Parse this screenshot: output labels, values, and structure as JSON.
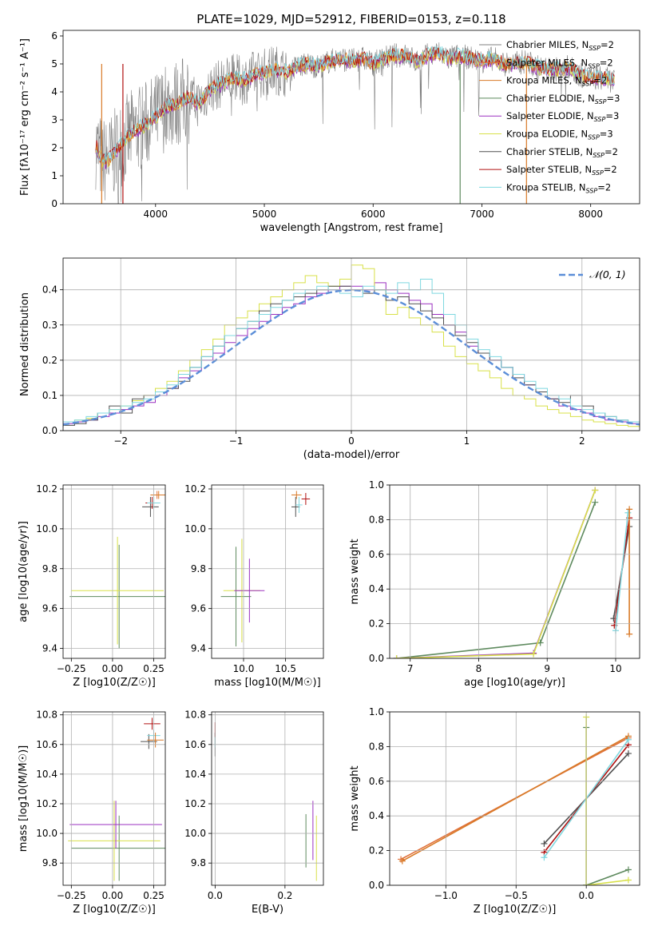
{
  "figure_title": "PLATE=1029, MJD=52912, FIBERID=0153, z=0.118",
  "colors": {
    "Chabrier MILES": "#808080",
    "Salpeter MILES": "#e0703a",
    "Kroupa MILES": "#d97a28",
    "Chabrier ELODIE": "#5e8a5e",
    "Salpeter ELODIE": "#9b30c0",
    "Kroupa ELODIE": "#d8e048",
    "Chabrier STELIB": "#505050",
    "Salpeter STELIB": "#b01010",
    "Kroupa STELIB": "#7fd8e0",
    "normal": "#5b8ed8"
  },
  "chart_data": [
    {
      "id": "spectrum",
      "type": "line",
      "title": "PLATE=1029, MJD=52912, FIBERID=0153, z=0.118",
      "xlabel": "wavelength [Angstrom, rest frame]",
      "ylabel": "Flux [fλ10⁻¹⁷ erg cm⁻² s⁻¹ A⁻¹]",
      "xlim": [
        3150,
        8450
      ],
      "ylim": [
        0,
        6.2
      ],
      "xticks": [
        4000,
        5000,
        6000,
        7000,
        8000
      ],
      "yticks": [
        0,
        1,
        2,
        3,
        4,
        5,
        6
      ],
      "grid": false,
      "legend_position": "top-right",
      "legend": [
        "Chabrier MILES, N_SSP=2",
        "Salpeter MILES, N_SSP=2",
        "Kroupa MILES, N_SSP=2",
        "Chabrier ELODIE, N_SSP=3",
        "Salpeter ELODIE, N_SSP=3",
        "Kroupa ELODIE, N_SSP=3",
        "Chabrier STELIB, N_SSP=2",
        "Salpeter STELIB, N_SSP=2",
        "Kroupa STELIB, N_SSP=2"
      ],
      "model_x": [
        3450,
        3500,
        3550,
        3600,
        3700,
        3800,
        3900,
        4000,
        4100,
        4200,
        4300,
        4400,
        4500,
        4600,
        4700,
        4800,
        4900,
        5000,
        5100,
        5200,
        5300,
        5400,
        5500,
        5600,
        5700,
        5800,
        5900,
        6000,
        6100,
        6200,
        6300,
        6400,
        6500,
        6600,
        6700,
        6800,
        6900,
        7000,
        7100,
        7200,
        7300,
        7400,
        7500,
        7600,
        7700,
        7800,
        7900,
        8000,
        8100,
        8200
      ],
      "model_y": [
        2.1,
        1.6,
        1.5,
        1.7,
        2.2,
        2.6,
        2.8,
        3.1,
        3.5,
        3.6,
        3.8,
        3.6,
        4.1,
        4.3,
        4.5,
        4.4,
        4.6,
        4.7,
        4.8,
        4.7,
        4.9,
        5.0,
        4.9,
        5.1,
        5.2,
        5.1,
        5.2,
        5.0,
        5.2,
        5.3,
        5.3,
        5.1,
        5.3,
        5.4,
        5.2,
        5.3,
        5.2,
        5.1,
        5.2,
        5.0,
        5.0,
        5.1,
        4.9,
        4.8,
        4.8,
        4.9,
        4.6,
        4.5,
        4.5,
        4.4
      ]
    },
    {
      "id": "residuals",
      "type": "line",
      "xlabel": "(data-model)/error",
      "ylabel": "Normed distribution",
      "xlim": [
        -2.5,
        2.5
      ],
      "ylim": [
        0,
        0.49
      ],
      "xticks": [
        -2,
        -1,
        0,
        1,
        2
      ],
      "yticks": [
        0.0,
        0.1,
        0.2,
        0.3,
        0.4
      ],
      "grid": true,
      "legend_position": "top-right",
      "legend": [
        "𝒩(0, 1)"
      ],
      "bin_start": -2.6,
      "bin_width": 0.1,
      "hist_series": [
        {
          "name": "Salpeter ELODIE",
          "values": [
            0.015,
            0.02,
            0.025,
            0.03,
            0.04,
            0.05,
            0.06,
            0.07,
            0.08,
            0.1,
            0.12,
            0.15,
            0.17,
            0.2,
            0.22,
            0.25,
            0.27,
            0.29,
            0.31,
            0.33,
            0.35,
            0.36,
            0.38,
            0.39,
            0.4,
            0.41,
            0.41,
            0.4,
            0.42,
            0.4,
            0.39,
            0.37,
            0.36,
            0.33,
            0.3,
            0.28,
            0.24,
            0.22,
            0.2,
            0.18,
            0.16,
            0.13,
            0.11,
            0.09,
            0.07,
            0.06,
            0.05,
            0.04,
            0.03,
            0.025,
            0.02,
            0.015
          ]
        },
        {
          "name": "Kroupa ELODIE",
          "values": [
            0.02,
            0.025,
            0.03,
            0.035,
            0.05,
            0.06,
            0.07,
            0.085,
            0.1,
            0.12,
            0.14,
            0.17,
            0.2,
            0.23,
            0.26,
            0.3,
            0.32,
            0.34,
            0.36,
            0.38,
            0.4,
            0.42,
            0.44,
            0.42,
            0.41,
            0.43,
            0.47,
            0.46,
            0.4,
            0.33,
            0.35,
            0.32,
            0.3,
            0.28,
            0.24,
            0.21,
            0.19,
            0.17,
            0.15,
            0.12,
            0.1,
            0.09,
            0.07,
            0.06,
            0.05,
            0.04,
            0.03,
            0.025,
            0.02,
            0.015,
            0.012,
            0.01
          ]
        },
        {
          "name": "Chabrier STELIB",
          "values": [
            0.01,
            0.015,
            0.02,
            0.03,
            0.05,
            0.07,
            0.05,
            0.09,
            0.1,
            0.11,
            0.12,
            0.14,
            0.18,
            0.21,
            0.24,
            0.27,
            0.29,
            0.31,
            0.34,
            0.36,
            0.37,
            0.38,
            0.39,
            0.4,
            0.41,
            0.41,
            0.4,
            0.39,
            0.4,
            0.37,
            0.38,
            0.36,
            0.34,
            0.32,
            0.3,
            0.27,
            0.25,
            0.22,
            0.2,
            0.18,
            0.15,
            0.13,
            0.11,
            0.09,
            0.08,
            0.1,
            0.07,
            0.05,
            0.04,
            0.03,
            0.025,
            0.02
          ]
        },
        {
          "name": "Kroupa STELIB",
          "values": [
            0.02,
            0.025,
            0.03,
            0.04,
            0.05,
            0.06,
            0.07,
            0.08,
            0.09,
            0.11,
            0.13,
            0.16,
            0.18,
            0.21,
            0.24,
            0.27,
            0.29,
            0.31,
            0.33,
            0.35,
            0.37,
            0.39,
            0.4,
            0.41,
            0.4,
            0.39,
            0.38,
            0.41,
            0.4,
            0.39,
            0.42,
            0.4,
            0.43,
            0.39,
            0.33,
            0.3,
            0.26,
            0.23,
            0.21,
            0.18,
            0.16,
            0.14,
            0.12,
            0.1,
            0.09,
            0.07,
            0.06,
            0.05,
            0.04,
            0.03,
            0.025,
            0.02
          ]
        }
      ],
      "normal_curve": {
        "name": "𝒩(0, 1)",
        "mu": 0,
        "sigma": 1
      }
    },
    {
      "id": "age-vs-Z",
      "type": "scatter",
      "xlabel": "Z [log10(Z/Z☉)]",
      "ylabel": "age [log10(age/yr)]",
      "xlim": [
        -0.3,
        0.32
      ],
      "ylim": [
        9.35,
        10.22
      ],
      "xticks": [
        -0.25,
        0,
        0.25
      ],
      "xtick_labels": [
        "−0.25",
        "0.00",
        "0.25"
      ],
      "yticks": [
        9.4,
        9.6,
        9.8,
        10.0,
        10.2
      ],
      "grid": true,
      "errorbars": [
        {
          "series": "Chabrier ELODIE",
          "x": 0.04,
          "xerr": 0.3,
          "y": 9.66,
          "yerr": 0.26
        },
        {
          "series": "Kroupa ELODIE",
          "x": 0.03,
          "xerr": 0.28,
          "y": 9.69,
          "yerr": 0.27
        },
        {
          "series": "Chabrier STELIB",
          "x": 0.23,
          "xerr": 0.05,
          "y": 10.11,
          "yerr": 0.05
        },
        {
          "series": "Salpeter STELIB",
          "x": 0.24,
          "xerr": 0.04,
          "y": 10.13,
          "yerr": 0.03
        },
        {
          "series": "Kroupa STELIB",
          "x": 0.25,
          "xerr": 0.04,
          "y": 10.13,
          "yerr": 0.03
        },
        {
          "series": "Salpeter MILES",
          "x": 0.27,
          "xerr": 0.04,
          "y": 10.17,
          "yerr": 0.02
        },
        {
          "series": "Kroupa MILES",
          "x": 0.28,
          "xerr": 0.05,
          "y": 10.17,
          "yerr": 0.02
        }
      ]
    },
    {
      "id": "age-vs-mass",
      "type": "scatter",
      "xlabel": "mass [log10(M/M☉)]",
      "ylabel": "",
      "xlim": [
        9.62,
        10.95
      ],
      "ylim": [
        9.35,
        10.22
      ],
      "xticks": [
        10.0,
        10.5
      ],
      "xtick_labels": [
        "10.0",
        "10.5"
      ],
      "yticks": [
        9.4,
        9.6,
        9.8,
        10.0,
        10.2
      ],
      "grid": true,
      "errorbars": [
        {
          "series": "Chabrier ELODIE",
          "x": 9.91,
          "xerr": 0.18,
          "y": 9.66,
          "yerr": 0.25
        },
        {
          "series": "Kroupa ELODIE",
          "x": 9.98,
          "xerr": 0.22,
          "y": 9.69,
          "yerr": 0.26
        },
        {
          "series": "Salpeter ELODIE",
          "x": 10.07,
          "xerr": 0.18,
          "y": 9.69,
          "yerr": 0.16
        },
        {
          "series": "Chabrier STELIB",
          "x": 10.62,
          "xerr": 0.05,
          "y": 10.11,
          "yerr": 0.05
        },
        {
          "series": "Kroupa STELIB",
          "x": 10.66,
          "xerr": 0.04,
          "y": 10.12,
          "yerr": 0.04
        },
        {
          "series": "Salpeter STELIB",
          "x": 10.74,
          "xerr": 0.05,
          "y": 10.15,
          "yerr": 0.03
        },
        {
          "series": "Kroupa MILES",
          "x": 10.63,
          "xerr": 0.06,
          "y": 10.17,
          "yerr": 0.02
        }
      ]
    },
    {
      "id": "weight-vs-age",
      "type": "line",
      "xlabel": "age [log10(age/yr)]",
      "ylabel": "mass weight",
      "xlim": [
        6.7,
        10.35
      ],
      "ylim": [
        0,
        1
      ],
      "xticks": [
        7,
        8,
        9,
        10
      ],
      "yticks": [
        0.0,
        0.2,
        0.4,
        0.6,
        0.8,
        1.0
      ],
      "grid": true,
      "series": [
        {
          "name": "Chabrier ELODIE",
          "x": [
            6.8,
            8.9,
            9.7
          ],
          "y": [
            0.0,
            0.09,
            0.9
          ]
        },
        {
          "name": "Salpeter ELODIE",
          "x": [
            6.8,
            8.8,
            9.7
          ],
          "y": [
            0.0,
            0.03,
            0.97
          ]
        },
        {
          "name": "Kroupa ELODIE",
          "x": [
            6.8,
            8.8,
            9.7
          ],
          "y": [
            0.0,
            0.025,
            0.97
          ]
        },
        {
          "name": "Chabrier STELIB",
          "x": [
            9.97,
            10.2
          ],
          "y": [
            0.23,
            0.76
          ]
        },
        {
          "name": "Salpeter STELIB",
          "x": [
            9.98,
            10.2
          ],
          "y": [
            0.19,
            0.81
          ]
        },
        {
          "name": "Kroupa STELIB",
          "x": [
            10.0,
            10.18
          ],
          "y": [
            0.16,
            0.84
          ]
        },
        {
          "name": "Kroupa MILES",
          "x": [
            10.2,
            10.2
          ],
          "y": [
            0.14,
            0.86
          ]
        }
      ]
    },
    {
      "id": "mass-vs-Z",
      "type": "scatter",
      "xlabel": "Z [log10(Z/Z☉)]",
      "ylabel": "mass [log10(M/M☉)]",
      "xlim": [
        -0.3,
        0.32
      ],
      "ylim": [
        9.65,
        10.82
      ],
      "xticks": [
        -0.25,
        0,
        0.25
      ],
      "xtick_labels": [
        "−0.25",
        "0.00",
        "0.25"
      ],
      "yticks": [
        9.8,
        10.0,
        10.2,
        10.4,
        10.6,
        10.8
      ],
      "grid": true,
      "errorbars": [
        {
          "series": "Chabrier ELODIE",
          "x": 0.04,
          "xerr": 0.29,
          "y": 9.9,
          "yerr": 0.22
        },
        {
          "series": "Kroupa ELODIE",
          "x": 0.01,
          "xerr": 0.28,
          "y": 9.95,
          "yerr": 0.27
        },
        {
          "series": "Salpeter ELODIE",
          "x": 0.02,
          "xerr": 0.28,
          "y": 10.06,
          "yerr": 0.16
        },
        {
          "series": "Chabrier STELIB",
          "x": 0.22,
          "xerr": 0.05,
          "y": 10.62,
          "yerr": 0.05
        },
        {
          "series": "Kroupa STELIB",
          "x": 0.25,
          "xerr": 0.04,
          "y": 10.66,
          "yerr": 0.04
        },
        {
          "series": "Salpeter STELIB",
          "x": 0.24,
          "xerr": 0.05,
          "y": 10.74,
          "yerr": 0.04
        },
        {
          "series": "Kroupa MILES",
          "x": 0.26,
          "xerr": 0.05,
          "y": 10.63,
          "yerr": 0.05
        }
      ]
    },
    {
      "id": "mass-vs-ebv",
      "type": "scatter",
      "xlabel": "E(B-V)",
      "ylabel": "",
      "xlim": [
        -0.01,
        0.31
      ],
      "ylim": [
        9.65,
        10.82
      ],
      "xticks": [
        0.0,
        0.2
      ],
      "xtick_labels": [
        "0.0",
        "0.2"
      ],
      "yticks": [
        9.8,
        10.0,
        10.2,
        10.4,
        10.6,
        10.8
      ],
      "grid": true,
      "errorbars": [
        {
          "series": "Chabrier STELIB",
          "x": 0.0,
          "xerr": 0,
          "y": 10.6,
          "yerr": 0.08
        },
        {
          "series": "Kroupa STELIB",
          "x": 0.0,
          "xerr": 0,
          "y": 10.63,
          "yerr": 0.05
        },
        {
          "series": "Salpeter STELIB",
          "x": 0.0,
          "xerr": 0,
          "y": 10.7,
          "yerr": 0.05
        },
        {
          "series": "Chabrier ELODIE",
          "x": 0.26,
          "xerr": 0,
          "y": 9.95,
          "yerr": 0.18
        },
        {
          "series": "Salpeter ELODIE",
          "x": 0.28,
          "xerr": 0,
          "y": 10.02,
          "yerr": 0.2
        },
        {
          "series": "Kroupa ELODIE",
          "x": 0.29,
          "xerr": 0,
          "y": 9.9,
          "yerr": 0.22
        }
      ]
    },
    {
      "id": "weight-vs-Z",
      "type": "line",
      "xlabel": "Z [log10(Z/Z☉)]",
      "ylabel": "mass weight",
      "xlim": [
        -1.4,
        0.38
      ],
      "ylim": [
        0,
        1
      ],
      "xticks": [
        -1.0,
        -0.5,
        0.0
      ],
      "xtick_labels": [
        "−1.0",
        "−0.5",
        "0.0"
      ],
      "yticks": [
        0.0,
        0.2,
        0.4,
        0.6,
        0.8,
        1.0
      ],
      "grid": true,
      "series": [
        {
          "name": "Salpeter MILES",
          "x": [
            -1.32,
            0.3
          ],
          "y": [
            0.15,
            0.85
          ]
        },
        {
          "name": "Kroupa MILES",
          "x": [
            -1.31,
            0.3
          ],
          "y": [
            0.14,
            0.86
          ]
        },
        {
          "name": "Chabrier STELIB",
          "x": [
            -0.3,
            0.3
          ],
          "y": [
            0.24,
            0.76
          ]
        },
        {
          "name": "Salpeter STELIB",
          "x": [
            -0.3,
            0.3
          ],
          "y": [
            0.19,
            0.81
          ]
        },
        {
          "name": "Kroupa STELIB",
          "x": [
            -0.3,
            0.3
          ],
          "y": [
            0.16,
            0.84
          ]
        },
        {
          "name": "Chabrier ELODIE",
          "x": [
            0.0,
            0.3
          ],
          "y": [
            0.0,
            0.09
          ]
        },
        {
          "name": "Kroupa ELODIE",
          "x": [
            0.0,
            0.3
          ],
          "y": [
            0.0,
            0.03
          ]
        },
        {
          "name": "Chabrier ELODIE",
          "x": [
            0.0,
            0.0
          ],
          "y": [
            0.0,
            0.91
          ]
        },
        {
          "name": "Kroupa ELODIE",
          "x": [
            0.0,
            0.0
          ],
          "y": [
            0.0,
            0.97
          ]
        }
      ]
    }
  ]
}
